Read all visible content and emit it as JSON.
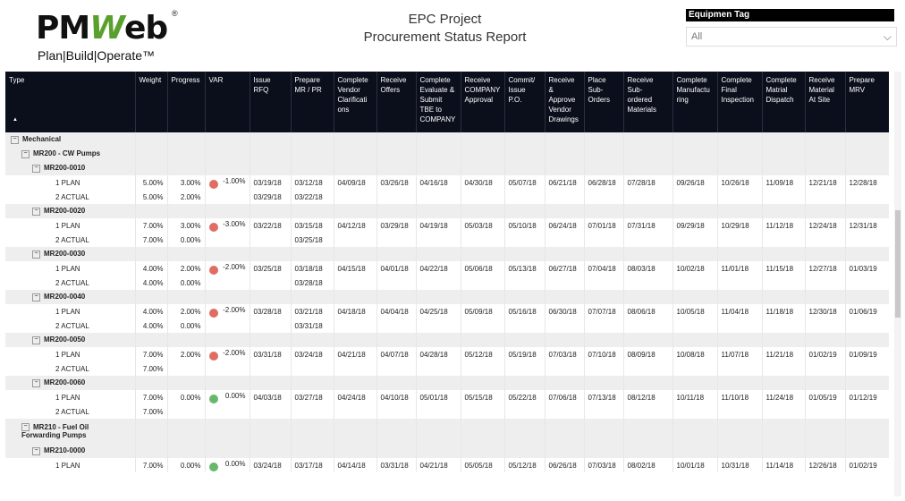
{
  "logo": {
    "text_main_a": "PM",
    "text_main_b": "W",
    "text_main_c": "eb",
    "registered": "®",
    "tagline": "Plan|Build|Operate™"
  },
  "report": {
    "line1": "EPC Project",
    "line2": "Procurement Status Report"
  },
  "filter": {
    "label": "Equipmen Tag",
    "value": "All"
  },
  "columns": [
    "Type",
    "Weight",
    "Progress",
    "VAR",
    "Issue RFQ",
    "Prepare MR / PR",
    "Complete Vendor Clarifications",
    "Receive Offers",
    "Complete Evaluate & Submit TBE to COMPANY",
    "Receive COMPANY Approval",
    "Commit/ Issue P.O.",
    "Receive & Approve Vendor Drawings",
    "Place Sub-Orders",
    "Receive Sub-ordered Materials",
    "Complete Manufacturing",
    "Complete Final Inspection",
    "Complete Matrial Dispatch",
    "Receive Material At Site",
    "Prepare MRV"
  ],
  "column_display": [
    "Type",
    "Weight",
    "Progress",
    "VAR",
    "Issue RFQ",
    "Prepare\nMR / PR",
    "Complete\nVendor\nClarificati\nons",
    "Receive\nOffers",
    "Complete\nEvaluate &\nSubmit\nTBE to\nCOMPANY",
    "Receive\nCOMPANY\nApproval",
    "Commit/\nIssue P.O.",
    "Receive\n&\nApprove\nVendor\nDrawings",
    "Place\nSub-\nOrders",
    "Receive\nSub-\nordered\nMaterials",
    "Complete\nManufactu\nring",
    "Complete\nFinal\nInspection",
    "Complete\nMatrial\nDispatch",
    "Receive\nMaterial\nAt Site",
    "Prepare\nMRV"
  ],
  "colors": {
    "header_bg": "#0b0f1c",
    "group_bg": "#eeeeee",
    "dot_red": "#e06c62",
    "dot_green": "#68b86b"
  },
  "rows": [
    {
      "kind": "grp",
      "indent": 0,
      "label": "Mechanical"
    },
    {
      "kind": "grp",
      "indent": 1,
      "label": "MR200 - CW Pumps"
    },
    {
      "kind": "grp",
      "indent": 2,
      "label": "MR200-0010"
    },
    {
      "kind": "plan",
      "label": "1 PLAN",
      "weight": "5.00%",
      "progress": "3.00%",
      "dot": "red",
      "var": "-1.00%",
      "dates": [
        "03/19/18",
        "03/12/18",
        "04/09/18",
        "03/26/18",
        "04/16/18",
        "04/30/18",
        "05/07/18",
        "06/21/18",
        "06/28/18",
        "07/28/18",
        "09/26/18",
        "10/26/18",
        "11/09/18",
        "12/21/18",
        "12/28/18"
      ]
    },
    {
      "kind": "actual",
      "label": "2 ACTUAL",
      "weight": "5.00%",
      "progress": "2.00%",
      "dot": "",
      "var": "",
      "dates": [
        "03/29/18",
        "03/22/18",
        "",
        "",
        "",
        "",
        "",
        "",
        "",
        "",
        "",
        "",
        "",
        "",
        ""
      ]
    },
    {
      "kind": "grp",
      "indent": 2,
      "label": "MR200-0020"
    },
    {
      "kind": "plan",
      "label": "1 PLAN",
      "weight": "7.00%",
      "progress": "3.00%",
      "dot": "red",
      "var": "-3.00%",
      "dates": [
        "03/22/18",
        "03/15/18",
        "04/12/18",
        "03/29/18",
        "04/19/18",
        "05/03/18",
        "05/10/18",
        "06/24/18",
        "07/01/18",
        "07/31/18",
        "09/29/18",
        "10/29/18",
        "11/12/18",
        "12/24/18",
        "12/31/18"
      ]
    },
    {
      "kind": "actual",
      "label": "2 ACTUAL",
      "weight": "7.00%",
      "progress": "0.00%",
      "dot": "",
      "var": "",
      "dates": [
        "",
        "03/25/18",
        "",
        "",
        "",
        "",
        "",
        "",
        "",
        "",
        "",
        "",
        "",
        "",
        ""
      ]
    },
    {
      "kind": "grp",
      "indent": 2,
      "label": "MR200-0030"
    },
    {
      "kind": "plan",
      "label": "1 PLAN",
      "weight": "4.00%",
      "progress": "2.00%",
      "dot": "red",
      "var": "-2.00%",
      "dates": [
        "03/25/18",
        "03/18/18",
        "04/15/18",
        "04/01/18",
        "04/22/18",
        "05/06/18",
        "05/13/18",
        "06/27/18",
        "07/04/18",
        "08/03/18",
        "10/02/18",
        "11/01/18",
        "11/15/18",
        "12/27/18",
        "01/03/19"
      ]
    },
    {
      "kind": "actual",
      "label": "2 ACTUAL",
      "weight": "4.00%",
      "progress": "0.00%",
      "dot": "",
      "var": "",
      "dates": [
        "",
        "03/28/18",
        "",
        "",
        "",
        "",
        "",
        "",
        "",
        "",
        "",
        "",
        "",
        "",
        ""
      ]
    },
    {
      "kind": "grp",
      "indent": 2,
      "label": "MR200-0040"
    },
    {
      "kind": "plan",
      "label": "1 PLAN",
      "weight": "4.00%",
      "progress": "2.00%",
      "dot": "red",
      "var": "-2.00%",
      "dates": [
        "03/28/18",
        "03/21/18",
        "04/18/18",
        "04/04/18",
        "04/25/18",
        "05/09/18",
        "05/16/18",
        "06/30/18",
        "07/07/18",
        "08/06/18",
        "10/05/18",
        "11/04/18",
        "11/18/18",
        "12/30/18",
        "01/06/19"
      ]
    },
    {
      "kind": "actual",
      "label": "2 ACTUAL",
      "weight": "4.00%",
      "progress": "0.00%",
      "dot": "",
      "var": "",
      "dates": [
        "",
        "03/31/18",
        "",
        "",
        "",
        "",
        "",
        "",
        "",
        "",
        "",
        "",
        "",
        "",
        ""
      ]
    },
    {
      "kind": "grp",
      "indent": 2,
      "label": "MR200-0050"
    },
    {
      "kind": "plan",
      "label": "1 PLAN",
      "weight": "7.00%",
      "progress": "2.00%",
      "dot": "red",
      "var": "-2.00%",
      "dates": [
        "03/31/18",
        "03/24/18",
        "04/21/18",
        "04/07/18",
        "04/28/18",
        "05/12/18",
        "05/19/18",
        "07/03/18",
        "07/10/18",
        "08/09/18",
        "10/08/18",
        "11/07/18",
        "11/21/18",
        "01/02/19",
        "01/09/19"
      ]
    },
    {
      "kind": "actual",
      "label": "2 ACTUAL",
      "weight": "7.00%",
      "progress": "",
      "dot": "",
      "var": "",
      "dates": [
        "",
        "",
        "",
        "",
        "",
        "",
        "",
        "",
        "",
        "",
        "",
        "",
        "",
        "",
        ""
      ]
    },
    {
      "kind": "grp",
      "indent": 2,
      "label": "MR200-0060"
    },
    {
      "kind": "plan",
      "label": "1 PLAN",
      "weight": "7.00%",
      "progress": "0.00%",
      "dot": "green",
      "var": "0.00%",
      "dates": [
        "04/03/18",
        "03/27/18",
        "04/24/18",
        "04/10/18",
        "05/01/18",
        "05/15/18",
        "05/22/18",
        "07/06/18",
        "07/13/18",
        "08/12/18",
        "10/11/18",
        "11/10/18",
        "11/24/18",
        "01/05/19",
        "01/12/19"
      ]
    },
    {
      "kind": "actual",
      "label": "2 ACTUAL",
      "weight": "7.00%",
      "progress": "",
      "dot": "",
      "var": "",
      "dates": [
        "",
        "",
        "",
        "",
        "",
        "",
        "",
        "",
        "",
        "",
        "",
        "",
        "",
        "",
        ""
      ]
    },
    {
      "kind": "grp2",
      "indent": 1,
      "label": "MR210 - Fuel Oil",
      "label2": "Forwarding Pumps"
    },
    {
      "kind": "grp",
      "indent": 2,
      "label": "MR210-0000"
    },
    {
      "kind": "plan",
      "label": "1 PLAN",
      "weight": "7.00%",
      "progress": "0.00%",
      "dot": "green",
      "var": "0.00%",
      "dates": [
        "03/24/18",
        "03/17/18",
        "04/14/18",
        "03/31/18",
        "04/21/18",
        "05/05/18",
        "05/12/18",
        "06/26/18",
        "07/03/18",
        "08/02/18",
        "10/01/18",
        "10/31/18",
        "11/14/18",
        "12/26/18",
        "01/02/19"
      ]
    }
  ]
}
